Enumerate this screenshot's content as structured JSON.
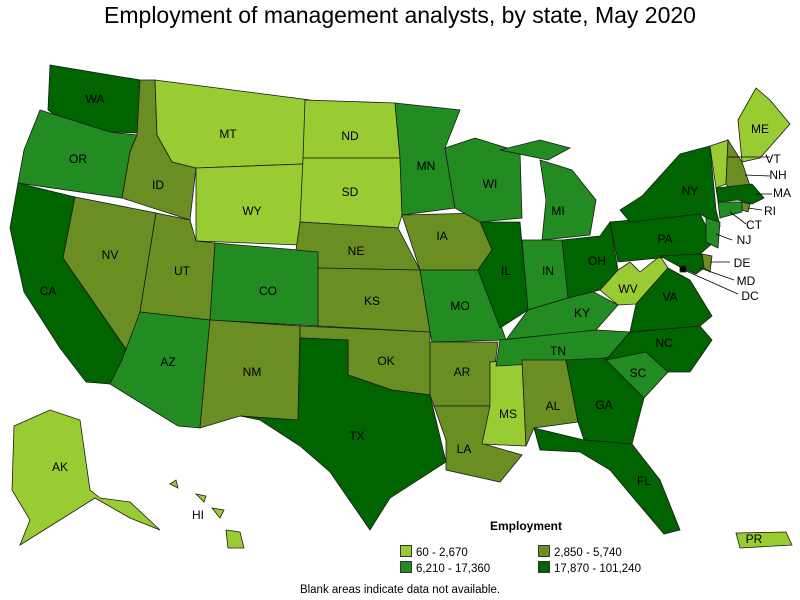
{
  "title": "Employment of management analysts, by state, May 2020",
  "legend": {
    "title": "Employment",
    "items": [
      {
        "label": "60 - 2,670",
        "color": "#99cc33"
      },
      {
        "label": "2,850 - 5,740",
        "color": "#6b8e23"
      },
      {
        "label": "6,210 - 17,360",
        "color": "#228b22"
      },
      {
        "label": "17,870 - 101,240",
        "color": "#006400"
      }
    ]
  },
  "footnote": "Blank areas indicate data not available.",
  "states": [
    {
      "abbr": "WA",
      "class": 3
    },
    {
      "abbr": "OR",
      "class": 2
    },
    {
      "abbr": "CA",
      "class": 3
    },
    {
      "abbr": "ID",
      "class": 1
    },
    {
      "abbr": "NV",
      "class": 1
    },
    {
      "abbr": "MT",
      "class": 0
    },
    {
      "abbr": "WY",
      "class": 0
    },
    {
      "abbr": "UT",
      "class": 1
    },
    {
      "abbr": "AZ",
      "class": 2
    },
    {
      "abbr": "CO",
      "class": 2
    },
    {
      "abbr": "NM",
      "class": 1
    },
    {
      "abbr": "ND",
      "class": 0
    },
    {
      "abbr": "SD",
      "class": 0
    },
    {
      "abbr": "NE",
      "class": 1
    },
    {
      "abbr": "KS",
      "class": 1
    },
    {
      "abbr": "OK",
      "class": 1
    },
    {
      "abbr": "TX",
      "class": 3
    },
    {
      "abbr": "MN",
      "class": 2
    },
    {
      "abbr": "IA",
      "class": 1
    },
    {
      "abbr": "MO",
      "class": 2
    },
    {
      "abbr": "AR",
      "class": 1
    },
    {
      "abbr": "LA",
      "class": 1
    },
    {
      "abbr": "WI",
      "class": 2
    },
    {
      "abbr": "IL",
      "class": 3
    },
    {
      "abbr": "MS",
      "class": 0
    },
    {
      "abbr": "MI",
      "class": 2
    },
    {
      "abbr": "IN",
      "class": 2
    },
    {
      "abbr": "KY",
      "class": 2
    },
    {
      "abbr": "TN",
      "class": 2
    },
    {
      "abbr": "AL",
      "class": 1
    },
    {
      "abbr": "OH",
      "class": 3
    },
    {
      "abbr": "WV",
      "class": 0
    },
    {
      "abbr": "GA",
      "class": 3
    },
    {
      "abbr": "FL",
      "class": 3
    },
    {
      "abbr": "SC",
      "class": 2
    },
    {
      "abbr": "NC",
      "class": 3
    },
    {
      "abbr": "VA",
      "class": 3
    },
    {
      "abbr": "PA",
      "class": 3
    },
    {
      "abbr": "NY",
      "class": 3
    },
    {
      "abbr": "ME",
      "class": 0
    },
    {
      "abbr": "VT",
      "class": 0
    },
    {
      "abbr": "NH",
      "class": 1
    },
    {
      "abbr": "MA",
      "class": 3
    },
    {
      "abbr": "RI",
      "class": 1
    },
    {
      "abbr": "CT",
      "class": 2
    },
    {
      "abbr": "NJ",
      "class": 2
    },
    {
      "abbr": "DE",
      "class": 1
    },
    {
      "abbr": "MD",
      "class": 3
    },
    {
      "abbr": "DC",
      "class": 3
    },
    {
      "abbr": "AK",
      "class": 0
    },
    {
      "abbr": "HI",
      "class": 0
    },
    {
      "abbr": "PR",
      "class": 0
    }
  ]
}
